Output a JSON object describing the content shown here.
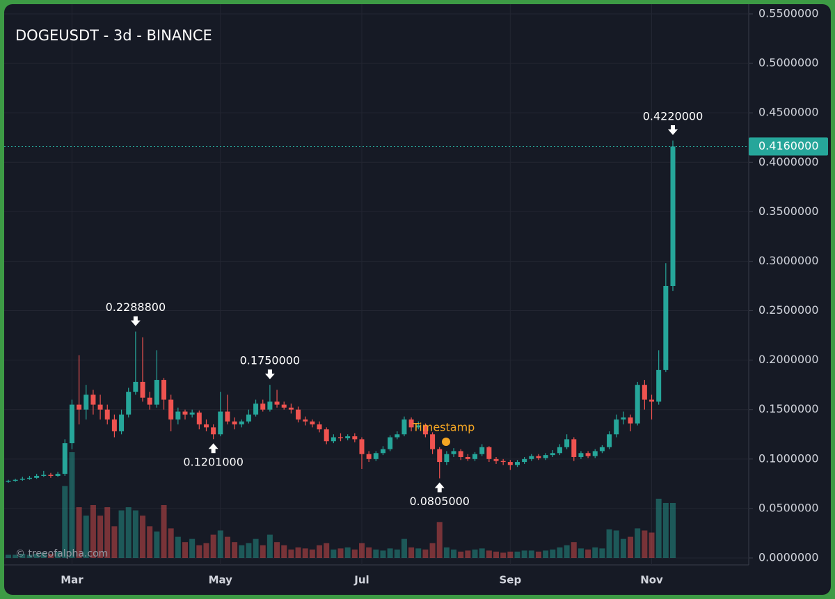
{
  "chart_data": {
    "type": "candlestick",
    "title": "DOGEUSDT - 3d - BINANCE",
    "watermark": "© treeofalpha.com",
    "timestamp_label": "Timestamp",
    "last_price_label": "0.4160000",
    "up_color": "#26a69a",
    "down_color": "#ef5350",
    "grid": true,
    "ylim": [
      0,
      0.55
    ],
    "yticks": [
      {
        "value": 0,
        "label": "0.0000000"
      },
      {
        "value": 0.05,
        "label": "0.0500000"
      },
      {
        "value": 0.1,
        "label": "0.1000000"
      },
      {
        "value": 0.15,
        "label": "0.1500000"
      },
      {
        "value": 0.2,
        "label": "0.2000000"
      },
      {
        "value": 0.25,
        "label": "0.2500000"
      },
      {
        "value": 0.3,
        "label": "0.3000000"
      },
      {
        "value": 0.35,
        "label": "0.3500000"
      },
      {
        "value": 0.4,
        "label": "0.4000000"
      },
      {
        "value": 0.45,
        "label": "0.4500000"
      },
      {
        "value": 0.5,
        "label": "0.5000000"
      },
      {
        "value": 0.55,
        "label": "0.5500000"
      }
    ],
    "volume_ylim": [
      0,
      100
    ],
    "categories": [
      null,
      null,
      null,
      null,
      null,
      null,
      null,
      null,
      null,
      "Mar",
      null,
      null,
      null,
      null,
      null,
      null,
      null,
      null,
      null,
      null,
      null,
      null,
      null,
      null,
      null,
      null,
      null,
      null,
      null,
      null,
      "May",
      null,
      null,
      null,
      null,
      null,
      null,
      null,
      null,
      null,
      null,
      null,
      null,
      null,
      null,
      null,
      null,
      null,
      null,
      null,
      "Jul",
      null,
      null,
      null,
      null,
      null,
      null,
      null,
      null,
      null,
      null,
      null,
      null,
      null,
      null,
      null,
      null,
      null,
      null,
      null,
      null,
      "Sep",
      null,
      null,
      null,
      null,
      null,
      null,
      null,
      null,
      null,
      null,
      null,
      null,
      null,
      null,
      null,
      null,
      null,
      null,
      null,
      "Nov",
      null,
      null,
      null
    ],
    "open": [
      0.077,
      0.078,
      0.079,
      0.08,
      0.081,
      0.083,
      0.084,
      0.083,
      0.085,
      0.116,
      0.155,
      0.15,
      0.165,
      0.155,
      0.15,
      0.14,
      0.128,
      0.145,
      0.168,
      0.178,
      0.162,
      0.155,
      0.18,
      0.16,
      0.14,
      0.148,
      0.145,
      0.147,
      0.135,
      0.132,
      0.125,
      0.148,
      0.138,
      0.135,
      0.138,
      0.145,
      0.156,
      0.15,
      0.158,
      0.155,
      0.152,
      0.15,
      0.14,
      0.138,
      0.135,
      0.13,
      0.118,
      0.122,
      0.121,
      0.123,
      0.12,
      0.105,
      0.1,
      0.106,
      0.11,
      0.122,
      0.125,
      0.14,
      0.132,
      0.134,
      0.125,
      0.11,
      0.097,
      0.105,
      0.108,
      0.102,
      0.1,
      0.105,
      0.112,
      0.1,
      0.098,
      0.097,
      0.094,
      0.097,
      0.1,
      0.103,
      0.101,
      0.104,
      0.106,
      0.112,
      0.12,
      0.102,
      0.106,
      0.103,
      0.108,
      0.112,
      0.125,
      0.14,
      0.142,
      0.136,
      0.175,
      0.16,
      0.158,
      0.19,
      0.275
    ],
    "high": [
      0.079,
      0.08,
      0.082,
      0.083,
      0.085,
      0.088,
      0.086,
      0.087,
      0.12,
      0.16,
      0.205,
      0.175,
      0.17,
      0.165,
      0.155,
      0.145,
      0.15,
      0.172,
      0.22888,
      0.223,
      0.168,
      0.21,
      0.182,
      0.165,
      0.152,
      0.15,
      0.15,
      0.149,
      0.14,
      0.135,
      0.168,
      0.165,
      0.142,
      0.14,
      0.15,
      0.16,
      0.16,
      0.175,
      0.17,
      0.158,
      0.156,
      0.153,
      0.143,
      0.14,
      0.138,
      0.132,
      0.125,
      0.126,
      0.125,
      0.126,
      0.122,
      0.108,
      0.108,
      0.113,
      0.124,
      0.128,
      0.143,
      0.142,
      0.138,
      0.136,
      0.127,
      0.112,
      0.108,
      0.111,
      0.11,
      0.105,
      0.107,
      0.115,
      0.113,
      0.102,
      0.1,
      0.099,
      0.099,
      0.102,
      0.105,
      0.105,
      0.106,
      0.109,
      0.115,
      0.125,
      0.122,
      0.108,
      0.108,
      0.11,
      0.114,
      0.128,
      0.145,
      0.148,
      0.145,
      0.178,
      0.18,
      0.165,
      0.21,
      0.298,
      0.422
    ],
    "low": [
      0.076,
      0.077,
      0.078,
      0.079,
      0.08,
      0.082,
      0.081,
      0.082,
      0.083,
      0.11,
      0.135,
      0.14,
      0.145,
      0.14,
      0.135,
      0.122,
      0.125,
      0.142,
      0.165,
      0.158,
      0.15,
      0.152,
      0.15,
      0.128,
      0.135,
      0.14,
      0.142,
      0.13,
      0.128,
      0.1201,
      0.123,
      0.135,
      0.13,
      0.132,
      0.136,
      0.143,
      0.148,
      0.148,
      0.152,
      0.15,
      0.146,
      0.137,
      0.134,
      0.132,
      0.127,
      0.115,
      0.116,
      0.118,
      0.119,
      0.117,
      0.09,
      0.097,
      0.098,
      0.104,
      0.108,
      0.12,
      0.123,
      0.128,
      0.13,
      0.122,
      0.105,
      0.0805,
      0.094,
      0.102,
      0.099,
      0.098,
      0.098,
      0.103,
      0.097,
      0.095,
      0.094,
      0.089,
      0.092,
      0.095,
      0.098,
      0.099,
      0.099,
      0.102,
      0.104,
      0.11,
      0.098,
      0.1,
      0.101,
      0.101,
      0.106,
      0.11,
      0.122,
      0.135,
      0.128,
      0.134,
      0.15,
      0.14,
      0.155,
      0.188,
      0.27
    ],
    "close": [
      0.078,
      0.079,
      0.08,
      0.081,
      0.083,
      0.084,
      0.083,
      0.085,
      0.116,
      0.155,
      0.15,
      0.165,
      0.155,
      0.15,
      0.14,
      0.128,
      0.145,
      0.168,
      0.178,
      0.162,
      0.155,
      0.18,
      0.16,
      0.14,
      0.148,
      0.145,
      0.147,
      0.135,
      0.132,
      0.125,
      0.148,
      0.138,
      0.135,
      0.138,
      0.145,
      0.156,
      0.15,
      0.158,
      0.155,
      0.152,
      0.15,
      0.14,
      0.138,
      0.135,
      0.13,
      0.118,
      0.122,
      0.121,
      0.123,
      0.12,
      0.105,
      0.1,
      0.106,
      0.11,
      0.122,
      0.125,
      0.14,
      0.132,
      0.134,
      0.125,
      0.11,
      0.097,
      0.105,
      0.108,
      0.102,
      0.1,
      0.105,
      0.112,
      0.1,
      0.098,
      0.097,
      0.094,
      0.097,
      0.1,
      0.103,
      0.101,
      0.104,
      0.106,
      0.112,
      0.12,
      0.102,
      0.106,
      0.103,
      0.108,
      0.112,
      0.125,
      0.14,
      0.142,
      0.136,
      0.175,
      0.16,
      0.158,
      0.19,
      0.275,
      0.416
    ],
    "volume": [
      3,
      3,
      4,
      3,
      4,
      5,
      4,
      6,
      68,
      100,
      48,
      40,
      50,
      40,
      48,
      30,
      45,
      48,
      45,
      40,
      30,
      25,
      50,
      28,
      20,
      15,
      18,
      12,
      14,
      22,
      26,
      20,
      15,
      12,
      14,
      18,
      12,
      22,
      15,
      12,
      8,
      10,
      9,
      8,
      12,
      14,
      8,
      9,
      10,
      8,
      14,
      10,
      8,
      7,
      9,
      8,
      18,
      10,
      9,
      8,
      14,
      34,
      10,
      8,
      6,
      7,
      8,
      9,
      7,
      6,
      5,
      6,
      6,
      7,
      7,
      6,
      7,
      8,
      10,
      12,
      15,
      9,
      8,
      10,
      9,
      27,
      26,
      18,
      20,
      28,
      26,
      24,
      56,
      52,
      52
    ],
    "high_value_labels": [
      null,
      null,
      null,
      null,
      null,
      null,
      null,
      null,
      null,
      null,
      null,
      null,
      null,
      null,
      null,
      null,
      null,
      null,
      "0.2288800",
      null,
      null,
      null,
      null,
      null,
      null,
      null,
      null,
      null,
      null,
      null,
      null,
      null,
      null,
      null,
      null,
      null,
      null,
      "0.1750000",
      null,
      null,
      null,
      null,
      null,
      null,
      null,
      null,
      null,
      null,
      null,
      null,
      null,
      null,
      null,
      null,
      null,
      null,
      null,
      null,
      null,
      null,
      null,
      null,
      null,
      null,
      null,
      null,
      null,
      null,
      null,
      null,
      null,
      null,
      null,
      null,
      null,
      null,
      null,
      null,
      null,
      null,
      null,
      null,
      null,
      null,
      null,
      null,
      null,
      null,
      null,
      null,
      null,
      null,
      null,
      null,
      "0.4220000"
    ],
    "low_value_labels": [
      null,
      null,
      null,
      null,
      null,
      null,
      null,
      null,
      null,
      null,
      null,
      null,
      null,
      null,
      null,
      null,
      null,
      null,
      null,
      null,
      null,
      null,
      null,
      null,
      null,
      null,
      null,
      null,
      null,
      "0.1201000",
      null,
      null,
      null,
      null,
      null,
      null,
      null,
      null,
      null,
      null,
      null,
      null,
      null,
      null,
      null,
      null,
      null,
      null,
      null,
      null,
      null,
      null,
      null,
      null,
      null,
      null,
      null,
      null,
      null,
      null,
      null,
      "0.0805000",
      null,
      null,
      null,
      null,
      null,
      null,
      null,
      null,
      null,
      null,
      null,
      null,
      null,
      null,
      null,
      null,
      null,
      null,
      null,
      null,
      null,
      null,
      null,
      null,
      null,
      null,
      null,
      null,
      null,
      null,
      null,
      null,
      null
    ]
  }
}
